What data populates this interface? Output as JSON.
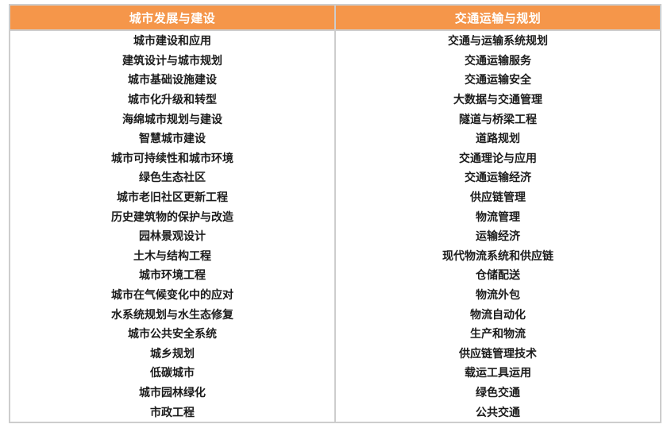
{
  "table": {
    "columns": [
      {
        "header": "城市发展与建设",
        "items": [
          "城市建设和应用",
          "建筑设计与城市规划",
          "城市基础设施建设",
          "城市化升级和转型",
          "海绵城市规划与建设",
          "智慧城市建设",
          "城市可持续性和城市环境",
          "绿色生态社区",
          "城市老旧社区更新工程",
          "历史建筑物的保护与改造",
          "园林景观设计",
          "土木与结构工程",
          "城市环境工程",
          "城市在气候变化中的应对",
          "水系统规划与水生态修复",
          "城市公共安全系统",
          "城乡规划",
          "低碳城市",
          "城市园林绿化",
          "市政工程"
        ]
      },
      {
        "header": "交通运输与规划",
        "items": [
          "交通与运输系统规划",
          "交通运输服务",
          "交通运输安全",
          "大数据与交通管理",
          "隧道与桥梁工程",
          "道路规划",
          "交通理论与应用",
          "交通运输经济",
          "供应链管理",
          "物流管理",
          "运输经济",
          "现代物流系统和供应链",
          "仓储配送",
          "物流外包",
          "物流自动化",
          "生产和物流",
          "供应链管理技术",
          "载运工具运用",
          "绿色交通",
          "公共交通"
        ]
      }
    ]
  },
  "colors": {
    "header_bg": "#f5964a",
    "header_text": "#ffffff",
    "border": "#cdcdcd",
    "body_text": "#1c1c1c"
  }
}
